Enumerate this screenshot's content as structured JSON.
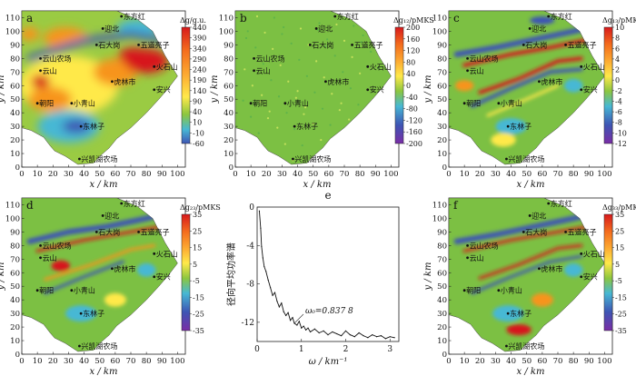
{
  "figure": {
    "x_axis_label": "x / km",
    "y_axis_label": "y / km",
    "x_ticks": [
      "0",
      "10",
      "20",
      "30",
      "40",
      "50",
      "60",
      "70",
      "80",
      "90",
      "100"
    ],
    "y_ticks": [
      "0",
      "10",
      "20",
      "30",
      "40",
      "50",
      "60",
      "70",
      "80",
      "90",
      "100",
      "110"
    ],
    "places": [
      {
        "name": "东方红",
        "x": 64,
        "y": 111
      },
      {
        "name": "迎北",
        "x": 52,
        "y": 102
      },
      {
        "name": "石大岗",
        "x": 48,
        "y": 90
      },
      {
        "name": "五道亮子",
        "x": 75,
        "y": 90
      },
      {
        "name": "云山农场",
        "x": 12,
        "y": 80
      },
      {
        "name": "云山",
        "x": 12,
        "y": 71
      },
      {
        "name": "火石山",
        "x": 85,
        "y": 74
      },
      {
        "name": "虎林市",
        "x": 58,
        "y": 63
      },
      {
        "name": "安兴",
        "x": 85,
        "y": 57
      },
      {
        "name": "朝阳",
        "x": 10,
        "y": 47
      },
      {
        "name": "小青山",
        "x": 32,
        "y": 47
      },
      {
        "name": "东林子",
        "x": 38,
        "y": 30
      },
      {
        "name": "兴凯湖农场",
        "x": 37,
        "y": 6
      }
    ],
    "colors": {
      "red": "#d7191c",
      "orange": "#f7941d",
      "yellow": "#ffe94a",
      "green": "#78c142",
      "cyan": "#47b8d4",
      "blue": "#3e55b4",
      "purple": "#7a2da6"
    }
  },
  "panels": [
    {
      "letter": "a",
      "unit": "Δg/g.u.",
      "ticks": [
        "440",
        "390",
        "340",
        "290",
        "240",
        "190",
        "140",
        "90",
        "40",
        "10",
        "-10",
        "-60"
      ]
    },
    {
      "letter": "b",
      "unit": "Δg₁₂/pMKS",
      "ticks": [
        "200",
        "160",
        "120",
        "80",
        "40",
        "0",
        "-40",
        "-80",
        "-120",
        "-160",
        "-200"
      ]
    },
    {
      "letter": "c",
      "unit": "Δg₁₃/pMKS",
      "ticks": [
        "10",
        "8",
        "6",
        "4",
        "2",
        "0",
        "-2",
        "-4",
        "-6",
        "-8",
        "-10",
        "-12"
      ]
    },
    {
      "letter": "d",
      "unit": "Δg₂₃/pMKS",
      "ticks": [
        "35",
        "25",
        "15",
        "5",
        "-5",
        "-15",
        "-25",
        "-35"
      ]
    },
    {
      "letter": "f",
      "unit": "Δg₃₃/pMKS",
      "ticks": [
        "35",
        "25",
        "15",
        "5",
        "-5",
        "-15",
        "-25",
        "-35"
      ]
    }
  ],
  "chart_data": {
    "type": "line",
    "panel_letter": "e",
    "title": "",
    "xlabel": "ω / km⁻¹",
    "ylabel": "径向平均功率谱",
    "xlim": [
      0,
      3.2
    ],
    "ylim": [
      -14,
      0
    ],
    "x_ticks": [
      "0",
      "1",
      "2",
      "3"
    ],
    "y_ticks": [
      "0",
      "-4",
      "-8",
      "-12"
    ],
    "annotation": {
      "text": "ω₀=0.837 8",
      "x": 0.84,
      "y": -12.1
    },
    "x": [
      0.05,
      0.08,
      0.1,
      0.13,
      0.16,
      0.2,
      0.25,
      0.3,
      0.35,
      0.4,
      0.45,
      0.5,
      0.55,
      0.6,
      0.65,
      0.7,
      0.75,
      0.8,
      0.84,
      0.9,
      0.95,
      1.0,
      1.05,
      1.1,
      1.15,
      1.2,
      1.3,
      1.4,
      1.5,
      1.6,
      1.7,
      1.8,
      1.9,
      2.0,
      2.1,
      2.2,
      2.3,
      2.4,
      2.5,
      2.6,
      2.7,
      2.8,
      2.9,
      3.0,
      3.1
    ],
    "y": [
      -0.4,
      -2.2,
      -4.1,
      -5.3,
      -6.2,
      -6.7,
      -7.6,
      -8.4,
      -9.2,
      -8.9,
      -9.8,
      -10.4,
      -10.0,
      -10.9,
      -11.3,
      -11.0,
      -11.8,
      -11.5,
      -12.1,
      -12.3,
      -11.9,
      -12.6,
      -12.4,
      -12.8,
      -12.6,
      -13.0,
      -12.7,
      -13.1,
      -12.9,
      -13.3,
      -13.0,
      -13.2,
      -13.4,
      -12.9,
      -13.3,
      -13.5,
      -13.1,
      -13.4,
      -13.6,
      -13.3,
      -13.5,
      -13.4,
      -13.7,
      -13.5,
      -13.6
    ]
  }
}
